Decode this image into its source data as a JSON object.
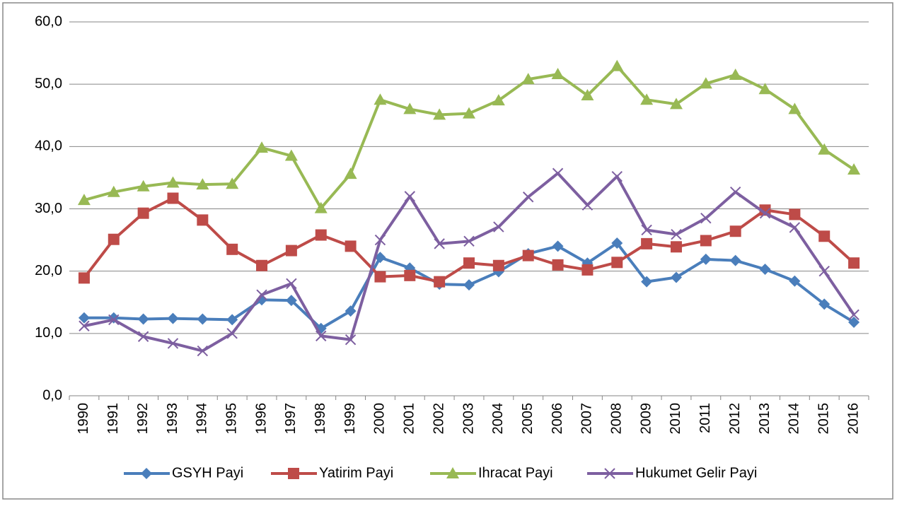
{
  "chart_data": {
    "type": "line",
    "categories": [
      "1990",
      "1991",
      "1992",
      "1993",
      "1994",
      "1995",
      "1996",
      "1997",
      "1998",
      "1999",
      "2000",
      "2001",
      "2002",
      "2003",
      "2004",
      "2005",
      "2006",
      "2007",
      "2008",
      "2009",
      "2010",
      "2011",
      "2012",
      "2013",
      "2014",
      "2015",
      "2016"
    ],
    "series": [
      {
        "name": "GSYH Payi",
        "color": "#4a7ebb",
        "marker": "diamond",
        "values": [
          12.5,
          12.5,
          12.3,
          12.4,
          12.3,
          12.2,
          15.4,
          15.3,
          10.8,
          13.6,
          22.2,
          20.5,
          17.9,
          17.8,
          19.9,
          22.8,
          24.0,
          21.3,
          24.5,
          18.3,
          19.0,
          21.9,
          21.7,
          20.3,
          18.4,
          14.7,
          11.8
        ]
      },
      {
        "name": "Yatirim Payi",
        "color": "#be4b48",
        "marker": "square",
        "values": [
          18.9,
          25.1,
          29.3,
          31.7,
          28.2,
          23.5,
          20.9,
          23.3,
          25.8,
          24.0,
          19.1,
          19.3,
          18.3,
          21.3,
          20.9,
          22.5,
          21.0,
          20.2,
          21.4,
          24.4,
          23.9,
          24.9,
          26.4,
          29.8,
          29.1,
          25.6,
          21.3
        ]
      },
      {
        "name": "Ihracat Payi",
        "color": "#98b954",
        "marker": "triangle",
        "values": [
          31.4,
          32.7,
          33.6,
          34.2,
          33.9,
          34.0,
          39.8,
          38.5,
          30.1,
          35.6,
          47.5,
          46.0,
          45.1,
          45.3,
          47.4,
          50.8,
          51.6,
          48.2,
          52.9,
          47.5,
          46.8,
          50.1,
          51.5,
          49.2,
          46.0,
          39.5,
          36.3
        ]
      },
      {
        "name": "Hukumet Gelir Payi",
        "color": "#7d5fa0",
        "marker": "x",
        "values": [
          11.2,
          12.2,
          9.5,
          8.4,
          7.2,
          10.0,
          16.2,
          18.0,
          9.6,
          9.0,
          25.0,
          32.0,
          24.4,
          24.8,
          27.1,
          31.9,
          35.7,
          30.6,
          35.2,
          26.6,
          25.9,
          28.5,
          32.7,
          29.3,
          27.0,
          20.0,
          13.0
        ]
      }
    ],
    "ylim": [
      0,
      60
    ],
    "yticks": [
      {
        "value": 0,
        "label": "0,0"
      },
      {
        "value": 10,
        "label": "10,0"
      },
      {
        "value": 20,
        "label": "20,0"
      },
      {
        "value": 30,
        "label": "30,0"
      },
      {
        "value": 40,
        "label": "40,0"
      },
      {
        "value": 50,
        "label": "50,0"
      },
      {
        "value": 60,
        "label": "60,0"
      }
    ],
    "grid": true,
    "legend": "bottom"
  }
}
